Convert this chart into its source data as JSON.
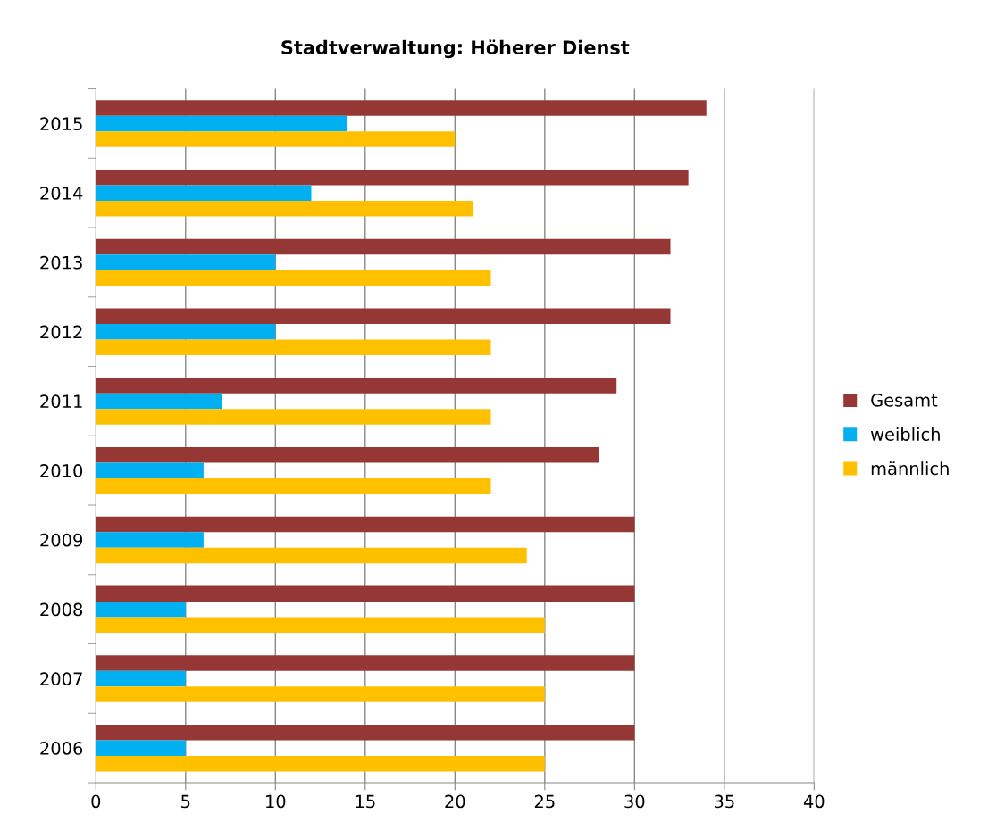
{
  "chart_data": {
    "type": "bar",
    "orientation": "horizontal",
    "title": "Stadtverwaltung: Höherer Dienst",
    "categories": [
      "2015",
      "2014",
      "2013",
      "2012",
      "2011",
      "2010",
      "2009",
      "2008",
      "2007",
      "2006"
    ],
    "series": [
      {
        "name": "Gesamt",
        "color": "#953735",
        "values": [
          34,
          33,
          32,
          32,
          29,
          28,
          30,
          30,
          30,
          30
        ]
      },
      {
        "name": "weiblich",
        "color": "#00b0f0",
        "values": [
          14,
          12,
          10,
          10,
          7,
          6,
          6,
          5,
          5,
          5
        ]
      },
      {
        "name": "männlich",
        "color": "#ffc000",
        "values": [
          20,
          21,
          22,
          22,
          22,
          22,
          24,
          25,
          25,
          25
        ]
      }
    ],
    "xlim": [
      0,
      40
    ],
    "xticks": [
      0,
      5,
      10,
      15,
      20,
      25,
      30,
      35,
      40
    ],
    "grid": "x",
    "legend": "right"
  }
}
